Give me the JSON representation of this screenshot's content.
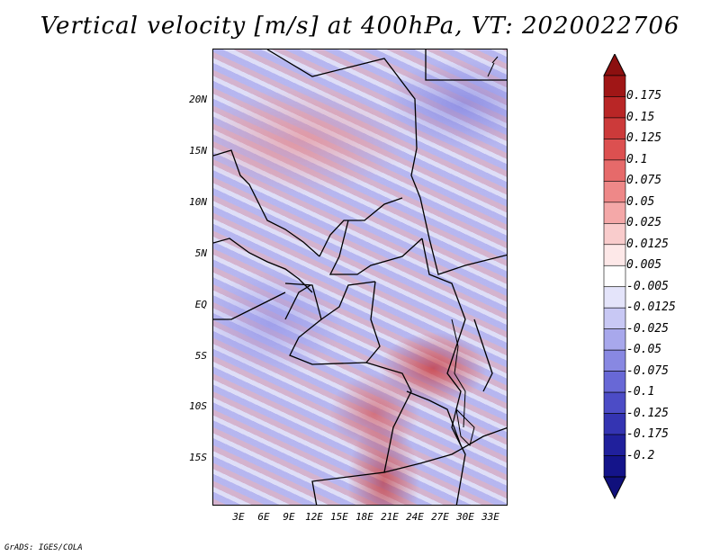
{
  "title": "Vertical velocity [m/s] at 400hPa, VT: 2020022706",
  "latitude_labels": [
    "20N",
    "15N",
    "10N",
    "5N",
    "EQ",
    "5S",
    "10S",
    "15S"
  ],
  "longitude_labels": [
    "3E",
    "6E",
    "9E",
    "12E",
    "15E",
    "18E",
    "21E",
    "24E",
    "27E",
    "30E",
    "33E"
  ],
  "colorbar": {
    "labels": [
      "0.175",
      "0.15",
      "0.125",
      "0.1",
      "0.075",
      "0.05",
      "0.025",
      "0.0125",
      "0.005",
      "-0.005",
      "-0.0125",
      "-0.025",
      "-0.05",
      "-0.075",
      "-0.1",
      "-0.125",
      "-0.175",
      "-0.2"
    ],
    "colors": [
      "#a01616",
      "#b92626",
      "#cc3a3a",
      "#dc5050",
      "#e66a6a",
      "#ee8888",
      "#f4a8a8",
      "#f9cccc",
      "#fde8e8",
      "#ffffff",
      "#e4e4fa",
      "#c8c8f4",
      "#a8a8ec",
      "#8888e2",
      "#6868d6",
      "#4c4cc6",
      "#3434b2",
      "#20209c",
      "#14148a"
    ],
    "top_arrow_color": "#8c1010",
    "bottom_arrow_color": "#10107c"
  },
  "credit": "GrADS: IGES/COLA"
}
